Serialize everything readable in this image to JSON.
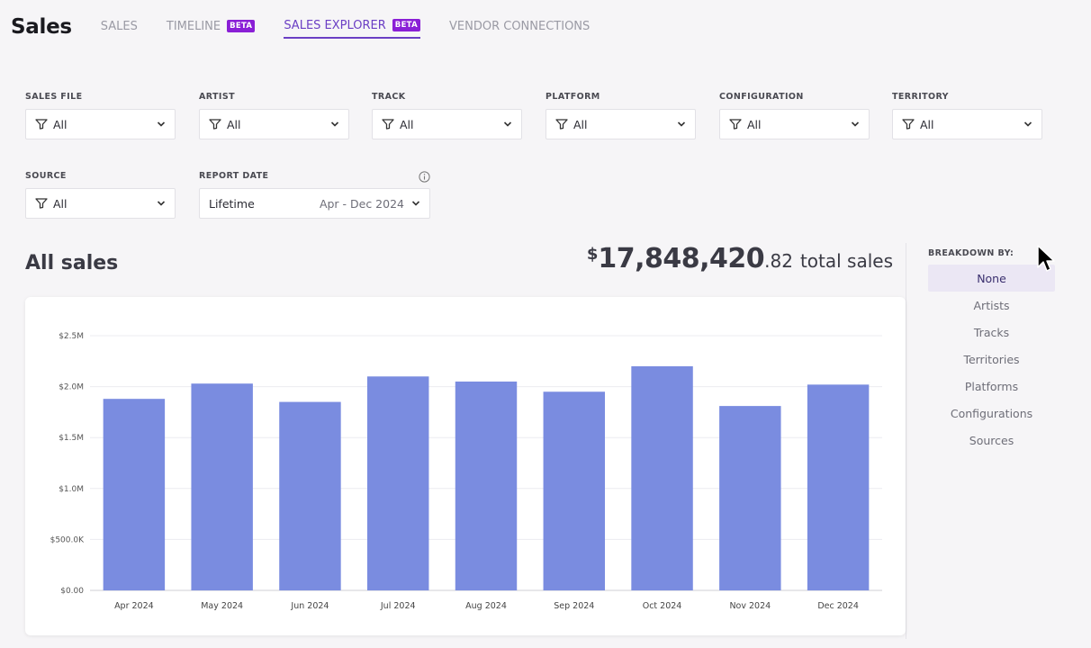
{
  "header": {
    "title": "Sales",
    "tabs": [
      {
        "label": "SALES",
        "active": false,
        "badge": ""
      },
      {
        "label": "TIMELINE",
        "active": false,
        "badge": "BETA"
      },
      {
        "label": "SALES EXPLORER",
        "active": true,
        "badge": "BETA"
      },
      {
        "label": "VENDOR CONNECTIONS",
        "active": false,
        "badge": ""
      }
    ]
  },
  "filters": {
    "sales_file": {
      "label": "SALES FILE",
      "value": "All"
    },
    "artist": {
      "label": "ARTIST",
      "value": "All"
    },
    "track": {
      "label": "TRACK",
      "value": "All"
    },
    "platform": {
      "label": "PLATFORM",
      "value": "All"
    },
    "configuration": {
      "label": "CONFIGURATION",
      "value": "All"
    },
    "territory": {
      "label": "TERRITORY",
      "value": "All"
    },
    "source": {
      "label": "SOURCE",
      "value": "All"
    },
    "report_date": {
      "label": "REPORT DATE",
      "value": "Lifetime",
      "range": "Apr - Dec 2024"
    }
  },
  "summary": {
    "title": "All sales",
    "currency": "$",
    "total_main": "17,848,420",
    "total_cents": ".82",
    "total_suffix": "total sales"
  },
  "breakdown": {
    "label": "BREAKDOWN BY:",
    "items": [
      {
        "label": "None",
        "active": true
      },
      {
        "label": "Artists",
        "active": false
      },
      {
        "label": "Tracks",
        "active": false
      },
      {
        "label": "Territories",
        "active": false
      },
      {
        "label": "Platforms",
        "active": false
      },
      {
        "label": "Configurations",
        "active": false
      },
      {
        "label": "Sources",
        "active": false
      }
    ]
  },
  "colors": {
    "bar": "#7a8ce0",
    "accent": "#6b3fc4",
    "beta_badge": "#8a1fd6",
    "breakdown_active_bg": "#ebe7f4"
  },
  "chart_data": {
    "type": "bar",
    "categories": [
      "Apr 2024",
      "May 2024",
      "Jun 2024",
      "Jul 2024",
      "Aug 2024",
      "Sep 2024",
      "Oct 2024",
      "Nov 2024",
      "Dec 2024"
    ],
    "values": [
      1880000,
      2030000,
      1850000,
      2100000,
      2050000,
      1950000,
      2200000,
      1810000,
      2020000
    ],
    "ylim": [
      0,
      2500000
    ],
    "yticks": [
      {
        "value": 0,
        "label": "$0.00"
      },
      {
        "value": 500000,
        "label": "$500.0K"
      },
      {
        "value": 1000000,
        "label": "$1.0M"
      },
      {
        "value": 1500000,
        "label": "$1.5M"
      },
      {
        "value": 2000000,
        "label": "$2.0M"
      },
      {
        "value": 2500000,
        "label": "$2.5M"
      }
    ],
    "grid": true,
    "title": "",
    "xlabel": "",
    "ylabel": ""
  }
}
